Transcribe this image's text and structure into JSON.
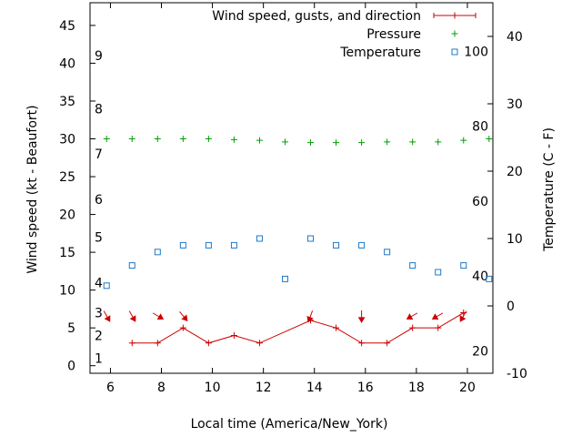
{
  "chart_data": {
    "type": "line",
    "xlabel": "Local time (America/New_York)",
    "ylabel": "Wind speed (kt - Beaufort)",
    "y2label": "Temperature (C - F)",
    "xlim": [
      5.2,
      21.0
    ],
    "ylim": [
      -1,
      48
    ],
    "y2lim": [
      -10,
      45
    ],
    "xticks": [
      6,
      8,
      10,
      12,
      14,
      16,
      18,
      20
    ],
    "yticks": [
      0,
      5,
      10,
      15,
      20,
      25,
      30,
      35,
      40,
      45
    ],
    "y2ticks": [
      -10,
      0,
      10,
      20,
      30,
      40
    ],
    "beaufort_labels": [
      {
        "label": "1",
        "value": 1
      },
      {
        "label": "2",
        "value": 4
      },
      {
        "label": "3",
        "value": 7
      },
      {
        "label": "4",
        "value": 11
      },
      {
        "label": "5",
        "value": 17
      },
      {
        "label": "6",
        "value": 22
      },
      {
        "label": "7",
        "value": 28
      },
      {
        "label": "8",
        "value": 34
      },
      {
        "label": "9",
        "value": 41
      }
    ],
    "fahrenheit_labels": [
      {
        "label": "20",
        "value": 20
      },
      {
        "label": "40",
        "value": 40
      },
      {
        "label": "60",
        "value": 60
      },
      {
        "label": "80",
        "value": 80
      },
      {
        "label": "100",
        "value": 100
      }
    ],
    "grid": false,
    "legend_position": "top-right",
    "series": [
      {
        "name": "Wind speed, gusts, and direction",
        "axis": "left",
        "style": "line-plus",
        "color": "#cc0000",
        "x": [
          6.85,
          7.85,
          8.85,
          9.85,
          10.85,
          11.85,
          13.85,
          14.85,
          15.85,
          16.85,
          17.85,
          18.85,
          19.85
        ],
        "values": [
          3,
          3,
          5,
          3,
          4,
          3,
          6,
          5,
          3,
          3,
          5,
          5,
          7
        ]
      },
      {
        "name": "Pressure",
        "axis": "left",
        "style": "plus",
        "color": "#00a000",
        "x": [
          5.85,
          6.85,
          7.85,
          8.85,
          9.85,
          10.85,
          11.85,
          12.85,
          13.85,
          14.85,
          15.85,
          16.85,
          17.85,
          18.85,
          19.85,
          20.85
        ],
        "values": [
          30.0,
          30.0,
          30.0,
          30.0,
          30.0,
          29.9,
          29.8,
          29.6,
          29.5,
          29.5,
          29.5,
          29.6,
          29.6,
          29.6,
          29.8,
          30.0
        ]
      },
      {
        "name": "Temperature",
        "axis": "right",
        "style": "square",
        "color": "#1e78c8",
        "x": [
          5.85,
          6.85,
          7.85,
          8.85,
          9.85,
          10.85,
          11.85,
          12.85,
          13.85,
          14.85,
          15.85,
          16.85,
          17.85,
          18.85,
          19.85,
          20.85
        ],
        "values": [
          3,
          6,
          8,
          9,
          9,
          9,
          10,
          4,
          10,
          9,
          9,
          8,
          6,
          5,
          6,
          4
        ]
      }
    ],
    "wind_direction_arrows": [
      {
        "x": 5.85,
        "angle_deg": 330
      },
      {
        "x": 6.85,
        "angle_deg": 330
      },
      {
        "x": 7.85,
        "angle_deg": 300
      },
      {
        "x": 8.85,
        "angle_deg": 320
      },
      {
        "x": 13.85,
        "angle_deg": 20
      },
      {
        "x": 15.85,
        "angle_deg": 0
      },
      {
        "x": 17.85,
        "angle_deg": 60
      },
      {
        "x": 18.85,
        "angle_deg": 60
      },
      {
        "x": 19.85,
        "angle_deg": 30
      }
    ]
  }
}
